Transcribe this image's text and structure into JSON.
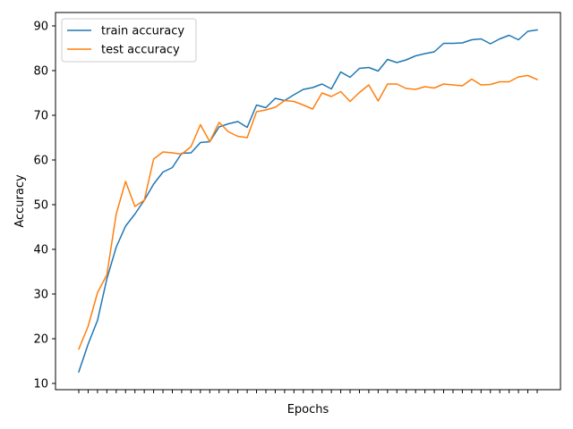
{
  "chart_data": {
    "type": "line",
    "xlabel": "Epochs",
    "ylabel": "Accuracy",
    "ylim": [
      8.6,
      93.0
    ],
    "yticks": [
      10,
      20,
      30,
      40,
      50,
      60,
      70,
      80,
      90
    ],
    "x_tick_count": 50,
    "x_tick_labels_shown": false,
    "legend_position": "top-left",
    "grid": false,
    "series": [
      {
        "name": "train accuracy",
        "color": "#1f77b4",
        "values": [
          12.6,
          18.8,
          24.1,
          33.4,
          40.5,
          45.2,
          47.9,
          51.0,
          54.6,
          57.3,
          58.3,
          61.5,
          61.6,
          63.9,
          64.1,
          67.4,
          68.1,
          68.6,
          67.3,
          72.3,
          71.7,
          73.8,
          73.3,
          74.6,
          75.8,
          76.2,
          77.0,
          75.9,
          79.7,
          78.5,
          80.5,
          80.7,
          79.9,
          82.5,
          81.8,
          82.4,
          83.3,
          83.8,
          84.2,
          86.1,
          86.1,
          86.2,
          86.9,
          87.1,
          86.0,
          87.1,
          87.9,
          86.9,
          88.8,
          89.1
        ]
      },
      {
        "name": "test accuracy",
        "color": "#ff7f0e",
        "values": [
          17.7,
          22.8,
          30.3,
          34.3,
          47.9,
          55.2,
          49.6,
          51.0,
          60.2,
          61.8,
          61.6,
          61.3,
          63.0,
          67.9,
          64.1,
          68.4,
          66.3,
          65.3,
          65.0,
          70.8,
          71.2,
          71.8,
          73.3,
          73.1,
          72.3,
          71.4,
          75.0,
          74.2,
          75.3,
          73.1,
          75.1,
          76.8,
          73.2,
          77.0,
          77.0,
          76.0,
          75.8,
          76.4,
          76.1,
          77.0,
          76.8,
          76.6,
          78.1,
          76.8,
          76.9,
          77.5,
          77.5,
          78.6,
          78.9,
          78.0
        ]
      }
    ]
  }
}
